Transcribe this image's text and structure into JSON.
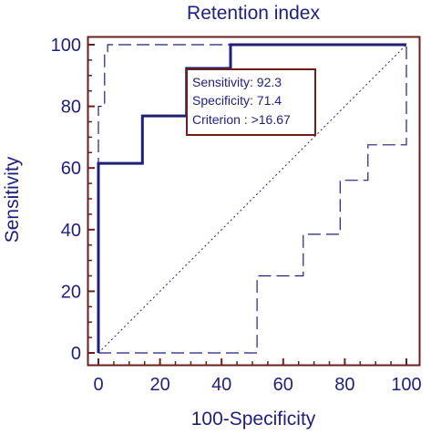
{
  "chart_data": {
    "type": "line",
    "title": "Retention index",
    "xlabel": "100-Specificity",
    "ylabel": "Sensitivity",
    "xlim": [
      0,
      100
    ],
    "ylim": [
      0,
      100
    ],
    "xticks": [
      0,
      20,
      40,
      60,
      80,
      100
    ],
    "yticks": [
      0,
      20,
      40,
      60,
      80,
      100
    ],
    "grid": false,
    "series": [
      {
        "role": "roc_curve",
        "style": "solid",
        "color": "#1f1f7a",
        "x": [
          0,
          0,
          14.3,
          14.3,
          28.6,
          28.6,
          42.9,
          42.9,
          100
        ],
        "y": [
          0,
          61.5,
          61.5,
          76.9,
          76.9,
          92.3,
          92.3,
          100,
          100
        ]
      },
      {
        "role": "upper_confidence_bound",
        "style": "dashed",
        "color": "#1f1f7a",
        "x": [
          0,
          0,
          2,
          2,
          3,
          3,
          100
        ],
        "y": [
          0,
          80,
          80,
          97,
          97,
          100,
          100
        ]
      },
      {
        "role": "lower_confidence_bound",
        "style": "dashed",
        "color": "#1f1f7a",
        "x": [
          0,
          51.5,
          51.5,
          66.5,
          66.5,
          78.5,
          78.5,
          87.5,
          87.5,
          100,
          100
        ],
        "y": [
          0,
          0,
          25,
          25,
          38.5,
          38.5,
          56,
          56,
          67.5,
          67.5,
          100
        ]
      },
      {
        "role": "diagonal_reference",
        "style": "dotted",
        "color": "#1f1f7a",
        "x": [
          0,
          100
        ],
        "y": [
          0,
          100
        ]
      }
    ],
    "annotation": {
      "lines": [
        "Sensitivity: 92.3",
        "Specificity: 71.4",
        "Criterion : >16.67"
      ],
      "point": {
        "x": 28.6,
        "y": 92.3
      },
      "color": "#6b1f1f"
    }
  }
}
